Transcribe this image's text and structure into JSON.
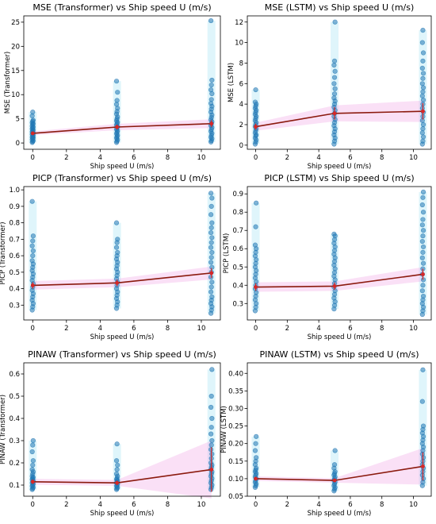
{
  "chart_data": [
    {
      "type": "scatter",
      "title": "MSE (Transformer) vs Ship speed U (m/s)",
      "xlabel": "Ship speed U (m/s)",
      "ylabel": "MSE (Transformer)",
      "xlim": [
        -0.53,
        11.13
      ],
      "ylim": [
        -1.3,
        26.3
      ],
      "xticks": [
        0,
        2,
        4,
        6,
        8,
        10
      ],
      "yticks": [
        0,
        5,
        10,
        15,
        20,
        25
      ],
      "ytick_labels": [
        "0",
        "5",
        "10",
        "15",
        "20",
        "25"
      ],
      "x": [
        0,
        5,
        10.6
      ],
      "mean": [
        2.0,
        3.3,
        4.0
      ],
      "err": [
        0.3,
        0.5,
        0.7
      ],
      "y_points": [
        [
          0.1,
          0.3,
          0.5,
          0.7,
          0.9,
          1.1,
          1.2,
          1.4,
          1.6,
          1.8,
          2.0,
          2.1,
          2.3,
          2.5,
          2.7,
          2.9,
          3.1,
          3.3,
          3.5,
          3.8,
          4.0,
          4.2,
          4.5,
          4.7,
          5.6,
          6.4
        ],
        [
          0.1,
          0.4,
          0.7,
          1.0,
          1.3,
          1.6,
          1.9,
          2.2,
          2.5,
          2.8,
          3.1,
          3.4,
          3.7,
          4.0,
          4.3,
          4.6,
          5.0,
          5.4,
          6.0,
          6.5,
          7.2,
          8.0,
          8.8,
          10.5,
          12.8
        ],
        [
          0.2,
          0.5,
          0.9,
          1.2,
          1.6,
          2.0,
          2.4,
          2.8,
          3.2,
          3.6,
          4.0,
          4.4,
          4.8,
          5.3,
          5.8,
          6.4,
          7.0,
          7.6,
          8.2,
          9.0,
          10.2,
          11.0,
          12.0,
          13.0,
          25.3
        ]
      ]
    },
    {
      "type": "scatter",
      "title": "MSE (LSTM) vs Ship speed U (m/s)",
      "xlabel": "Ship speed U (m/s)",
      "ylabel": "MSE (LSTM)",
      "xlim": [
        -0.53,
        11.13
      ],
      "ylim": [
        -0.4,
        12.6
      ],
      "xticks": [
        0,
        2,
        4,
        6,
        8,
        10
      ],
      "yticks": [
        0,
        2,
        4,
        6,
        8,
        10,
        12
      ],
      "ytick_labels": [
        "0",
        "2",
        "4",
        "6",
        "8",
        "10",
        "12"
      ],
      "x": [
        0,
        5,
        10.6
      ],
      "mean": [
        1.8,
        3.1,
        3.3
      ],
      "err": [
        0.3,
        0.6,
        0.8
      ],
      "y_points": [
        [
          0.1,
          0.3,
          0.5,
          0.7,
          0.9,
          1.0,
          1.2,
          1.4,
          1.6,
          1.8,
          2.0,
          2.2,
          2.4,
          2.6,
          2.8,
          3.0,
          3.2,
          3.4,
          3.6,
          3.8,
          4.0,
          4.2,
          5.4
        ],
        [
          0.1,
          0.4,
          0.7,
          1.0,
          1.3,
          1.6,
          1.9,
          2.2,
          2.5,
          2.8,
          3.1,
          3.4,
          3.7,
          4.0,
          4.3,
          4.6,
          5.0,
          5.5,
          6.0,
          6.6,
          7.2,
          7.8,
          8.2,
          12.0
        ],
        [
          0.1,
          0.4,
          0.8,
          1.2,
          1.6,
          2.0,
          2.4,
          2.8,
          3.2,
          3.6,
          4.0,
          4.4,
          4.8,
          5.2,
          5.6,
          6.0,
          6.5,
          7.0,
          7.5,
          8.2,
          9.0,
          10.0,
          11.2
        ]
      ]
    },
    {
      "type": "scatter",
      "title": "PICP (Transformer) vs Ship speed U (m/s)",
      "xlabel": "Ship speed U (m/s)",
      "ylabel": "PICP (Transformer)",
      "xlim": [
        -0.53,
        11.13
      ],
      "ylim": [
        0.21,
        1.02
      ],
      "xticks": [
        0,
        2,
        4,
        6,
        8,
        10
      ],
      "yticks": [
        0.3,
        0.4,
        0.5,
        0.6,
        0.7,
        0.8,
        0.9,
        1.0
      ],
      "ytick_labels": [
        "0.3",
        "0.4",
        "0.5",
        "0.6",
        "0.7",
        "0.8",
        "0.9",
        "1.0"
      ],
      "x": [
        0,
        5,
        10.6
      ],
      "mean": [
        0.42,
        0.435,
        0.495
      ],
      "err": [
        0.02,
        0.02,
        0.03
      ],
      "y_points": [
        [
          0.27,
          0.29,
          0.31,
          0.33,
          0.35,
          0.37,
          0.39,
          0.41,
          0.43,
          0.45,
          0.47,
          0.49,
          0.51,
          0.53,
          0.55,
          0.57,
          0.6,
          0.63,
          0.66,
          0.69,
          0.72,
          0.93
        ],
        [
          0.28,
          0.3,
          0.32,
          0.34,
          0.36,
          0.38,
          0.4,
          0.42,
          0.44,
          0.46,
          0.48,
          0.5,
          0.52,
          0.54,
          0.56,
          0.58,
          0.6,
          0.62,
          0.65,
          0.68,
          0.7,
          0.8
        ],
        [
          0.25,
          0.27,
          0.29,
          0.31,
          0.33,
          0.35,
          0.38,
          0.41,
          0.44,
          0.47,
          0.5,
          0.53,
          0.56,
          0.59,
          0.62,
          0.65,
          0.68,
          0.71,
          0.74,
          0.77,
          0.8,
          0.85,
          0.9,
          0.95,
          0.98
        ]
      ]
    },
    {
      "type": "scatter",
      "title": "PICP (LSTM) vs Ship speed U (m/s)",
      "xlabel": "Ship speed U (m/s)",
      "ylabel": "PICP (LSTM)",
      "xlim": [
        -0.53,
        11.13
      ],
      "ylim": [
        0.21,
        0.94
      ],
      "xticks": [
        0,
        2,
        4,
        6,
        8,
        10
      ],
      "yticks": [
        0.3,
        0.4,
        0.5,
        0.6,
        0.7,
        0.8,
        0.9
      ],
      "ytick_labels": [
        "0.3",
        "0.4",
        "0.5",
        "0.6",
        "0.7",
        "0.8",
        "0.9"
      ],
      "x": [
        0,
        5,
        10.6
      ],
      "mean": [
        0.39,
        0.395,
        0.46
      ],
      "err": [
        0.02,
        0.02,
        0.03
      ],
      "y_points": [
        [
          0.26,
          0.28,
          0.3,
          0.32,
          0.34,
          0.36,
          0.38,
          0.4,
          0.42,
          0.44,
          0.46,
          0.48,
          0.5,
          0.52,
          0.54,
          0.56,
          0.58,
          0.6,
          0.62,
          0.72,
          0.85
        ],
        [
          0.27,
          0.29,
          0.31,
          0.33,
          0.35,
          0.37,
          0.39,
          0.41,
          0.43,
          0.45,
          0.47,
          0.49,
          0.51,
          0.53,
          0.55,
          0.57,
          0.59,
          0.61,
          0.63,
          0.65,
          0.67,
          0.68
        ],
        [
          0.24,
          0.26,
          0.28,
          0.3,
          0.32,
          0.34,
          0.37,
          0.4,
          0.43,
          0.46,
          0.49,
          0.52,
          0.55,
          0.58,
          0.61,
          0.64,
          0.67,
          0.7,
          0.73,
          0.76,
          0.8,
          0.84,
          0.88,
          0.91
        ]
      ]
    },
    {
      "type": "scatter",
      "title": "PINAW (Transformer) vs Ship speed U (m/s)",
      "xlabel": "Ship speed U (m/s)",
      "ylabel": "PINAW (Transformer)",
      "xlim": [
        -0.53,
        11.13
      ],
      "ylim": [
        0.05,
        0.65
      ],
      "xticks": [
        0,
        2,
        4,
        6,
        8,
        10
      ],
      "yticks": [
        0.1,
        0.2,
        0.3,
        0.4,
        0.5,
        0.6
      ],
      "ytick_labels": [
        "0.1",
        "0.2",
        "0.3",
        "0.4",
        "0.5",
        "0.6"
      ],
      "x": [
        0,
        5,
        10.6
      ],
      "mean": [
        0.115,
        0.11,
        0.17
      ],
      "err": [
        0.01,
        0.01,
        0.1
      ],
      "y_points": [
        [
          0.08,
          0.085,
          0.09,
          0.095,
          0.1,
          0.105,
          0.11,
          0.115,
          0.12,
          0.125,
          0.13,
          0.135,
          0.14,
          0.15,
          0.16,
          0.17,
          0.19,
          0.21,
          0.25,
          0.28,
          0.3
        ],
        [
          0.08,
          0.085,
          0.09,
          0.095,
          0.1,
          0.105,
          0.11,
          0.115,
          0.12,
          0.125,
          0.13,
          0.14,
          0.15,
          0.17,
          0.19,
          0.21,
          0.285
        ],
        [
          0.08,
          0.09,
          0.1,
          0.11,
          0.12,
          0.13,
          0.14,
          0.15,
          0.16,
          0.17,
          0.18,
          0.19,
          0.2,
          0.22,
          0.24,
          0.26,
          0.28,
          0.3,
          0.33,
          0.36,
          0.4,
          0.45,
          0.5,
          0.62
        ]
      ]
    },
    {
      "type": "scatter",
      "title": "PINAW (LSTM) vs Ship speed U (m/s)",
      "xlabel": "Ship speed U (m/s)",
      "ylabel": "PINAW (LSTM)",
      "xlim": [
        -0.53,
        11.13
      ],
      "ylim": [
        0.05,
        0.43
      ],
      "xticks": [
        0,
        2,
        4,
        6,
        8,
        10
      ],
      "yticks": [
        0.05,
        0.1,
        0.15,
        0.2,
        0.25,
        0.3,
        0.35,
        0.4
      ],
      "ytick_labels": [
        "0.05",
        "0.10",
        "0.15",
        "0.20",
        "0.25",
        "0.30",
        "0.35",
        "0.40"
      ],
      "x": [
        0,
        5,
        10.6
      ],
      "mean": [
        0.1,
        0.095,
        0.135
      ],
      "err": [
        0.005,
        0.005,
        0.04
      ],
      "y_points": [
        [
          0.075,
          0.08,
          0.085,
          0.09,
          0.095,
          0.1,
          0.105,
          0.11,
          0.115,
          0.12,
          0.125,
          0.13,
          0.14,
          0.15,
          0.16,
          0.18,
          0.2,
          0.22
        ],
        [
          0.065,
          0.07,
          0.075,
          0.08,
          0.085,
          0.09,
          0.095,
          0.1,
          0.105,
          0.11,
          0.115,
          0.12,
          0.13,
          0.14,
          0.18
        ],
        [
          0.08,
          0.09,
          0.1,
          0.11,
          0.12,
          0.13,
          0.14,
          0.15,
          0.16,
          0.17,
          0.18,
          0.19,
          0.2,
          0.21,
          0.22,
          0.23,
          0.24,
          0.25,
          0.32,
          0.41
        ]
      ]
    }
  ],
  "colors": {
    "points": "#1f77b4",
    "glow": "#7fd8f0",
    "band": "#f0a6e6",
    "mean_line": "#8b1a0e",
    "axes": "#000000"
  }
}
